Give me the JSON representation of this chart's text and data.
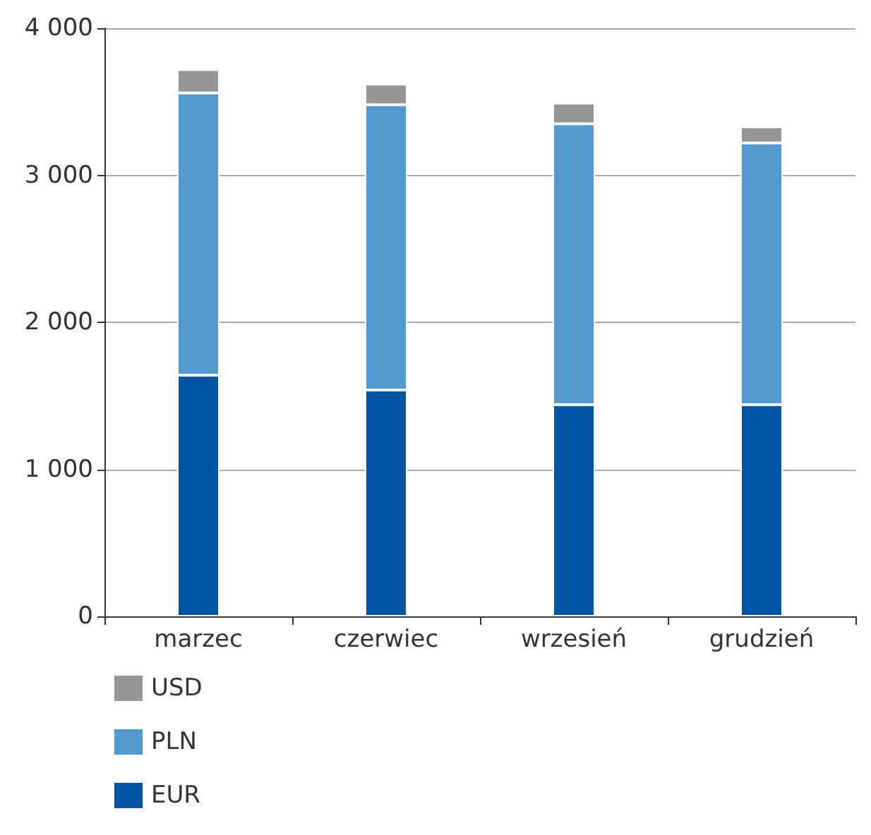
{
  "chart_data": {
    "type": "bar",
    "stacked": true,
    "categories": [
      "marzec",
      "czerwiec",
      "wrzesień",
      "grudzień"
    ],
    "series": [
      {
        "name": "EUR",
        "color": "#0055a5",
        "values": [
          1640,
          1540,
          1440,
          1440
        ]
      },
      {
        "name": "PLN",
        "color": "#5199cf",
        "values": [
          1920,
          1940,
          1910,
          1780
        ]
      },
      {
        "name": "USD",
        "color": "#959595",
        "values": [
          160,
          140,
          140,
          110
        ]
      }
    ],
    "ylim": [
      0,
      4000
    ],
    "yticks": [
      {
        "value": 0,
        "label": "0"
      },
      {
        "value": 1000,
        "label": "1 000"
      },
      {
        "value": 2000,
        "label": "2 000"
      },
      {
        "value": 3000,
        "label": "3 000"
      },
      {
        "value": 4000,
        "label": "4 000"
      }
    ],
    "grid": "y",
    "legend": "bottom left"
  }
}
